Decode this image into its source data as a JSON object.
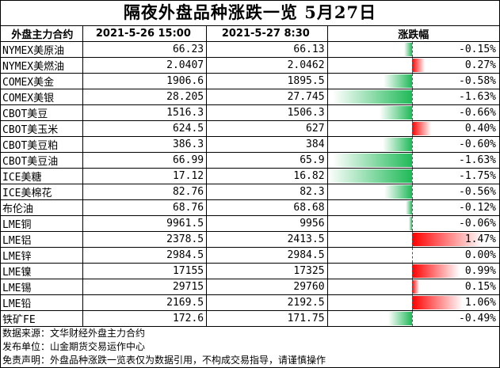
{
  "title": "隔夜外盘品种涨跌一览 5月27日",
  "headers": {
    "name": "外盘主力合约",
    "prev": "2021-5-26 15:00",
    "curr": "2021-5-27 8:30",
    "change": "涨跌幅"
  },
  "rows": [
    {
      "name": "NYMEX美原油",
      "prev": "66.23",
      "curr": "66.13",
      "change": "-0.15%",
      "change_value": -0.15
    },
    {
      "name": "NYMEX美燃油",
      "prev": "2.0407",
      "curr": "2.0462",
      "change": "0.27%",
      "change_value": 0.27
    },
    {
      "name": "COMEX美金",
      "prev": "1906.6",
      "curr": "1895.5",
      "change": "-0.58%",
      "change_value": -0.58
    },
    {
      "name": "COMEX美银",
      "prev": "28.205",
      "curr": "27.745",
      "change": "-1.63%",
      "change_value": -1.63
    },
    {
      "name": "CBOT美豆",
      "prev": "1516.3",
      "curr": "1506.3",
      "change": "-0.66%",
      "change_value": -0.66
    },
    {
      "name": "CBOT美玉米",
      "prev": "624.5",
      "curr": "627",
      "change": "0.40%",
      "change_value": 0.4
    },
    {
      "name": "CBOT美豆粕",
      "prev": "386.3",
      "curr": "384",
      "change": "-0.60%",
      "change_value": -0.6
    },
    {
      "name": "CBOT美豆油",
      "prev": "66.99",
      "curr": "65.9",
      "change": "-1.63%",
      "change_value": -1.63
    },
    {
      "name": "ICE美糖",
      "prev": "17.12",
      "curr": "16.82",
      "change": "-1.75%",
      "change_value": -1.75
    },
    {
      "name": "ICE美棉花",
      "prev": "82.76",
      "curr": "82.3",
      "change": "-0.56%",
      "change_value": -0.56
    },
    {
      "name": "布伦油",
      "prev": "68.76",
      "curr": "68.68",
      "change": "-0.12%",
      "change_value": -0.12
    },
    {
      "name": "LME铜",
      "prev": "9961.5",
      "curr": "9956",
      "change": "-0.06%",
      "change_value": -0.06
    },
    {
      "name": "LME铝",
      "prev": "2378.5",
      "curr": "2413.5",
      "change": "1.47%",
      "change_value": 1.47
    },
    {
      "name": "LME锌",
      "prev": "2984.5",
      "curr": "2984.5",
      "change": "0.00%",
      "change_value": 0.0
    },
    {
      "name": "LME镍",
      "prev": "17155",
      "curr": "17325",
      "change": "0.99%",
      "change_value": 0.99
    },
    {
      "name": "LME锡",
      "prev": "29715",
      "curr": "29760",
      "change": "0.15%",
      "change_value": 0.15
    },
    {
      "name": "LME铅",
      "prev": "2169.5",
      "curr": "2192.5",
      "change": "1.06%",
      "change_value": 1.06
    },
    {
      "name": "铁矿FE",
      "prev": "172.6",
      "curr": "171.75",
      "change": "-0.49%",
      "change_value": -0.49
    }
  ],
  "colors": {
    "negative": "#1fba58",
    "positive": "#ff0000"
  },
  "footer": {
    "source": "数据来源：文华财经外盘主力合约",
    "publisher": "发布单位：山金期货交易运作中心",
    "disclaimer": "免责声明：外盘品种涨跌一览表仅为数据引用，不构成交易指导，请谨慎操作"
  }
}
